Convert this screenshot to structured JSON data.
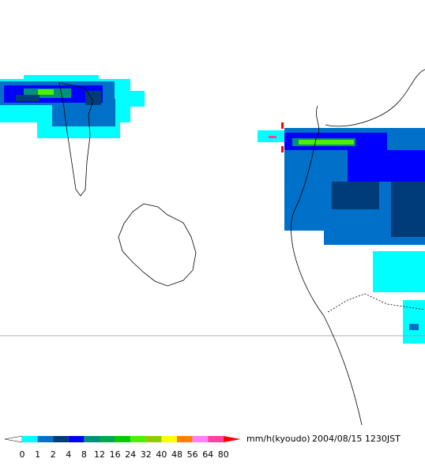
{
  "legend": {
    "levels": [
      0,
      1,
      2,
      4,
      8,
      12,
      16,
      24,
      32,
      40,
      48,
      56,
      64,
      80
    ],
    "colors": [
      "#ffffff",
      "#00ffff",
      "#0070c8",
      "#003c78",
      "#0000ff",
      "#00907c",
      "#00a850",
      "#00cc00",
      "#50ee00",
      "#90cc00",
      "#ffff00",
      "#ff8000",
      "#ff80ff",
      "#ff40a0",
      "#ff0000"
    ],
    "unit": "mm/h(kyoudo)",
    "timestamp": "2004/08/15 1230JST"
  }
}
